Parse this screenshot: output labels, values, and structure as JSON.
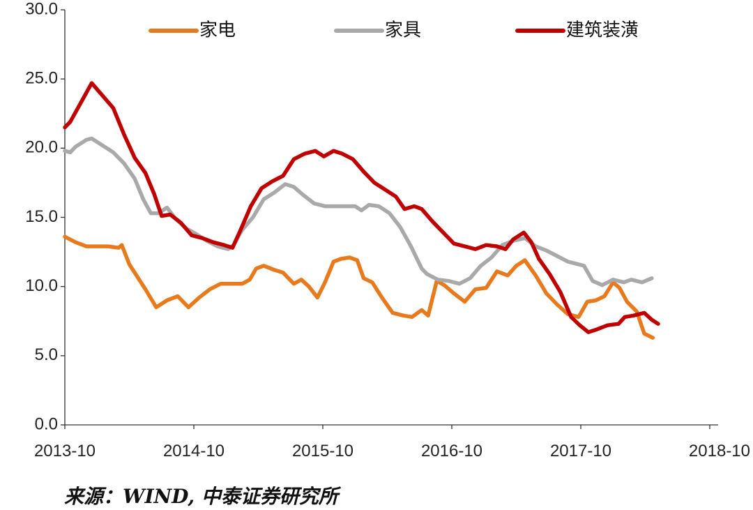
{
  "chart_data": {
    "type": "line",
    "ylim": [
      0,
      30
    ],
    "y_ticks": [
      "0.0",
      "5.0",
      "10.0",
      "15.0",
      "20.0",
      "25.0",
      "30.0"
    ],
    "x_ticks": [
      {
        "label": "2013-10",
        "month": 0
      },
      {
        "label": "2014-10",
        "month": 12
      },
      {
        "label": "2015-10",
        "month": 24
      },
      {
        "label": "2016-10",
        "month": 36
      },
      {
        "label": "2017-10",
        "month": 48
      },
      {
        "label": "2018-10",
        "month": 60
      }
    ],
    "x_range_months": [
      0,
      61
    ],
    "legend_position": "top",
    "series": [
      {
        "name": "家电",
        "color": "#E87A1E",
        "values": [
          [
            0,
            13.6
          ],
          [
            1,
            13.2
          ],
          [
            2,
            12.9
          ],
          [
            3,
            12.9
          ],
          [
            4,
            12.9
          ],
          [
            5,
            12.8
          ],
          [
            5.3,
            13.0
          ],
          [
            6,
            11.6
          ],
          [
            7,
            10.4
          ],
          [
            7.5,
            9.8
          ],
          [
            8.5,
            8.5
          ],
          [
            9.5,
            9.0
          ],
          [
            10.5,
            9.3
          ],
          [
            11.5,
            8.5
          ],
          [
            12.5,
            9.2
          ],
          [
            13.5,
            9.8
          ],
          [
            14.5,
            10.2
          ],
          [
            15.5,
            10.2
          ],
          [
            16.5,
            10.2
          ],
          [
            17.2,
            10.5
          ],
          [
            17.8,
            11.3
          ],
          [
            18.5,
            11.5
          ],
          [
            19.5,
            11.2
          ],
          [
            20.3,
            11.0
          ],
          [
            21.3,
            10.2
          ],
          [
            22,
            10.5
          ],
          [
            22.7,
            10.0
          ],
          [
            23.5,
            9.2
          ],
          [
            24.2,
            10.3
          ],
          [
            25,
            11.8
          ],
          [
            25.7,
            12.0
          ],
          [
            26.5,
            12.1
          ],
          [
            27.2,
            11.9
          ],
          [
            27.8,
            10.6
          ],
          [
            28.6,
            10.3
          ],
          [
            29.5,
            9.2
          ],
          [
            30.5,
            8.1
          ],
          [
            31.5,
            7.9
          ],
          [
            32.3,
            7.8
          ],
          [
            33.2,
            8.3
          ],
          [
            33.8,
            7.9
          ],
          [
            34.6,
            10.4
          ],
          [
            35.3,
            10.1
          ],
          [
            36.2,
            9.5
          ],
          [
            37.2,
            8.9
          ],
          [
            38.2,
            9.8
          ],
          [
            39.2,
            9.9
          ],
          [
            40.2,
            11.1
          ],
          [
            41.2,
            10.8
          ],
          [
            42,
            11.5
          ],
          [
            42.8,
            11.9
          ],
          [
            43.8,
            10.8
          ],
          [
            44.8,
            9.5
          ],
          [
            45.8,
            8.7
          ],
          [
            46.8,
            8.0
          ],
          [
            47.8,
            7.8
          ],
          [
            48.6,
            8.9
          ],
          [
            49.4,
            9.0
          ],
          [
            50.2,
            9.3
          ],
          [
            51,
            10.3
          ],
          [
            51.6,
            9.9
          ],
          [
            52.3,
            8.9
          ],
          [
            53.2,
            8.2
          ],
          [
            53.9,
            6.6
          ],
          [
            54.7,
            6.3
          ]
        ]
      },
      {
        "name": "家具",
        "color": "#A9A9A9",
        "values": [
          [
            0,
            19.8
          ],
          [
            0.5,
            19.7
          ],
          [
            1,
            20.1
          ],
          [
            2,
            20.6
          ],
          [
            2.5,
            20.7
          ],
          [
            3.5,
            20.2
          ],
          [
            4.5,
            19.7
          ],
          [
            5.5,
            18.9
          ],
          [
            6.5,
            17.8
          ],
          [
            7.3,
            16.3
          ],
          [
            8,
            15.3
          ],
          [
            8.7,
            15.3
          ],
          [
            9.5,
            15.7
          ],
          [
            10.3,
            14.9
          ],
          [
            11.3,
            14.2
          ],
          [
            12.2,
            13.8
          ],
          [
            13.2,
            13.3
          ],
          [
            14.2,
            12.9
          ],
          [
            15.2,
            12.7
          ],
          [
            15.7,
            13.0
          ],
          [
            16.5,
            14.1
          ],
          [
            17.5,
            15.0
          ],
          [
            18.5,
            16.3
          ],
          [
            19.5,
            16.8
          ],
          [
            20.5,
            17.4
          ],
          [
            21.3,
            17.2
          ],
          [
            22.2,
            16.6
          ],
          [
            23.2,
            16.0
          ],
          [
            24.2,
            15.8
          ],
          [
            25.2,
            15.8
          ],
          [
            26.2,
            15.8
          ],
          [
            27,
            15.8
          ],
          [
            27.6,
            15.5
          ],
          [
            28.3,
            15.9
          ],
          [
            29.2,
            15.8
          ],
          [
            30.2,
            15.3
          ],
          [
            31.2,
            14.3
          ],
          [
            32.2,
            12.9
          ],
          [
            33.2,
            11.3
          ],
          [
            33.7,
            10.9
          ],
          [
            34.7,
            10.5
          ],
          [
            35.7,
            10.4
          ],
          [
            36.7,
            10.2
          ],
          [
            37.7,
            10.6
          ],
          [
            38.7,
            11.5
          ],
          [
            39.7,
            12.1
          ],
          [
            40.7,
            13.0
          ],
          [
            41.7,
            13.3
          ],
          [
            42.3,
            13.4
          ],
          [
            42.8,
            13.5
          ],
          [
            43.8,
            12.9
          ],
          [
            44.8,
            12.6
          ],
          [
            45.8,
            12.2
          ],
          [
            46.8,
            11.8
          ],
          [
            47.8,
            11.6
          ],
          [
            48.3,
            11.5
          ],
          [
            49.1,
            10.4
          ],
          [
            50,
            10.1
          ],
          [
            51,
            10.5
          ],
          [
            52,
            10.3
          ],
          [
            52.7,
            10.5
          ],
          [
            53.7,
            10.3
          ],
          [
            54.6,
            10.6
          ]
        ]
      },
      {
        "name": "建筑装潢",
        "color": "#C00000",
        "values": [
          [
            0,
            21.5
          ],
          [
            0.5,
            21.9
          ],
          [
            1.5,
            23.3
          ],
          [
            2.5,
            24.7
          ],
          [
            3.5,
            23.8
          ],
          [
            4.5,
            22.9
          ],
          [
            5.5,
            21.0
          ],
          [
            6.5,
            19.3
          ],
          [
            7.5,
            18.2
          ],
          [
            8.3,
            16.7
          ],
          [
            9,
            15.1
          ],
          [
            9.8,
            15.2
          ],
          [
            10.8,
            14.6
          ],
          [
            11.8,
            13.7
          ],
          [
            12.8,
            13.5
          ],
          [
            13.8,
            13.2
          ],
          [
            14.8,
            13.0
          ],
          [
            15.6,
            12.8
          ],
          [
            16.3,
            14.0
          ],
          [
            17.3,
            15.8
          ],
          [
            18.3,
            17.1
          ],
          [
            19.3,
            17.6
          ],
          [
            20.3,
            18.0
          ],
          [
            21.3,
            19.2
          ],
          [
            22.3,
            19.6
          ],
          [
            23.3,
            19.8
          ],
          [
            24.1,
            19.4
          ],
          [
            25,
            19.8
          ],
          [
            25.8,
            19.6
          ],
          [
            26.8,
            19.2
          ],
          [
            27.8,
            18.3
          ],
          [
            28.8,
            17.5
          ],
          [
            29.8,
            17.0
          ],
          [
            30.8,
            16.5
          ],
          [
            31.6,
            15.6
          ],
          [
            32.5,
            15.8
          ],
          [
            33.2,
            15.6
          ],
          [
            34.2,
            14.7
          ],
          [
            35.2,
            13.9
          ],
          [
            36.2,
            13.1
          ],
          [
            37.2,
            12.9
          ],
          [
            38.2,
            12.7
          ],
          [
            39.2,
            13.0
          ],
          [
            40.2,
            12.9
          ],
          [
            41,
            12.7
          ],
          [
            41.7,
            13.4
          ],
          [
            42.7,
            13.9
          ],
          [
            43.4,
            13.2
          ],
          [
            44.1,
            12.0
          ],
          [
            45.1,
            10.9
          ],
          [
            46.1,
            9.6
          ],
          [
            47.1,
            7.8
          ],
          [
            47.9,
            7.2
          ],
          [
            48.7,
            6.7
          ],
          [
            49.5,
            6.9
          ],
          [
            50.5,
            7.2
          ],
          [
            51.5,
            7.3
          ],
          [
            52.1,
            7.8
          ],
          [
            52.9,
            7.9
          ],
          [
            53.9,
            8.1
          ],
          [
            54.6,
            7.6
          ],
          [
            55.2,
            7.3
          ]
        ]
      }
    ]
  },
  "source_text": "来源：WIND, 中泰证券研究所"
}
